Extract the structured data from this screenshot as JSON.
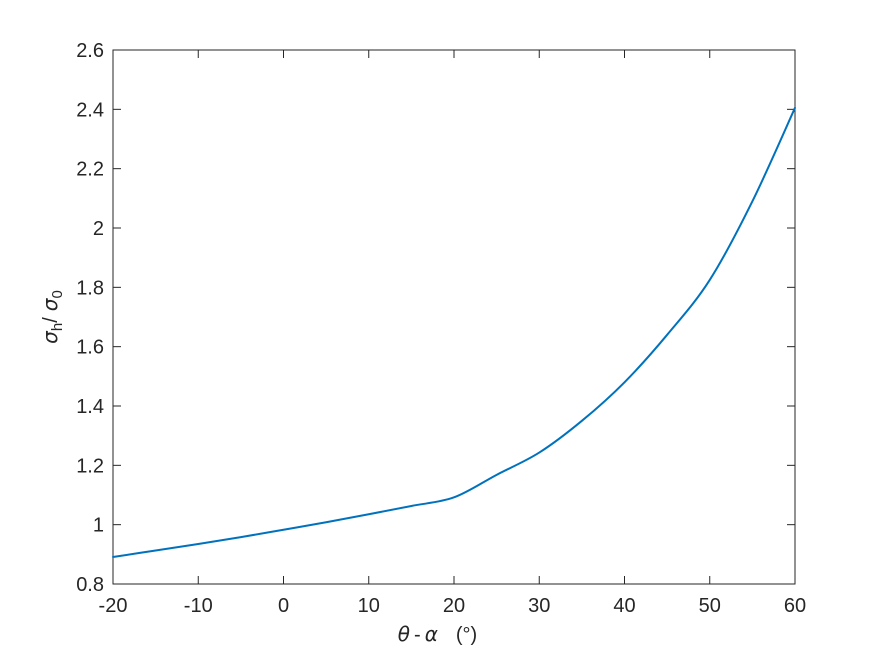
{
  "figure": {
    "background": "#ffffff",
    "axis_color": "#262626",
    "tick_label_color": "#262626"
  },
  "chart_data": {
    "type": "line",
    "title": "",
    "xlabel": "theta - alpha (deg)",
    "ylabel": "sigma_h / sigma_0",
    "x": [
      -20,
      -15,
      -10,
      -5,
      0,
      5,
      10,
      15,
      20,
      25,
      30,
      35,
      40,
      45,
      50,
      55,
      60
    ],
    "y": [
      0.891,
      0.913,
      0.935,
      0.958,
      0.983,
      1.008,
      1.035,
      1.063,
      1.092,
      1.168,
      1.243,
      1.35,
      1.48,
      1.64,
      1.825,
      2.09,
      2.405
    ],
    "xlim": [
      -20,
      60
    ],
    "ylim": [
      0.8,
      2.6
    ],
    "xticks": [
      -20,
      -10,
      0,
      10,
      20,
      30,
      40,
      50,
      60
    ],
    "xtick_labels": [
      "-20",
      "-10",
      "0",
      "10",
      "20",
      "30",
      "40",
      "50",
      "60"
    ],
    "yticks": [
      0.8,
      1.0,
      1.2,
      1.4,
      1.6,
      1.8,
      2.0,
      2.2,
      2.4,
      2.6
    ],
    "ytick_labels": [
      "0.8",
      "1",
      "1.2",
      "1.4",
      "1.6",
      "1.8",
      "2",
      "2.2",
      "2.4",
      "2.6"
    ],
    "line_color": "#0072BD",
    "line_width": 2,
    "grid": false,
    "box": true,
    "legend_position": "none"
  },
  "xlabel_parts": {
    "theta": "θ",
    "minus": "-",
    "alpha": "α",
    "unit": "(°)"
  },
  "ylabel_parts": {
    "sigma_h": "σ",
    "sub_h": "h",
    "slash": "/",
    "sigma_0": "σ",
    "sub_0": "0"
  }
}
